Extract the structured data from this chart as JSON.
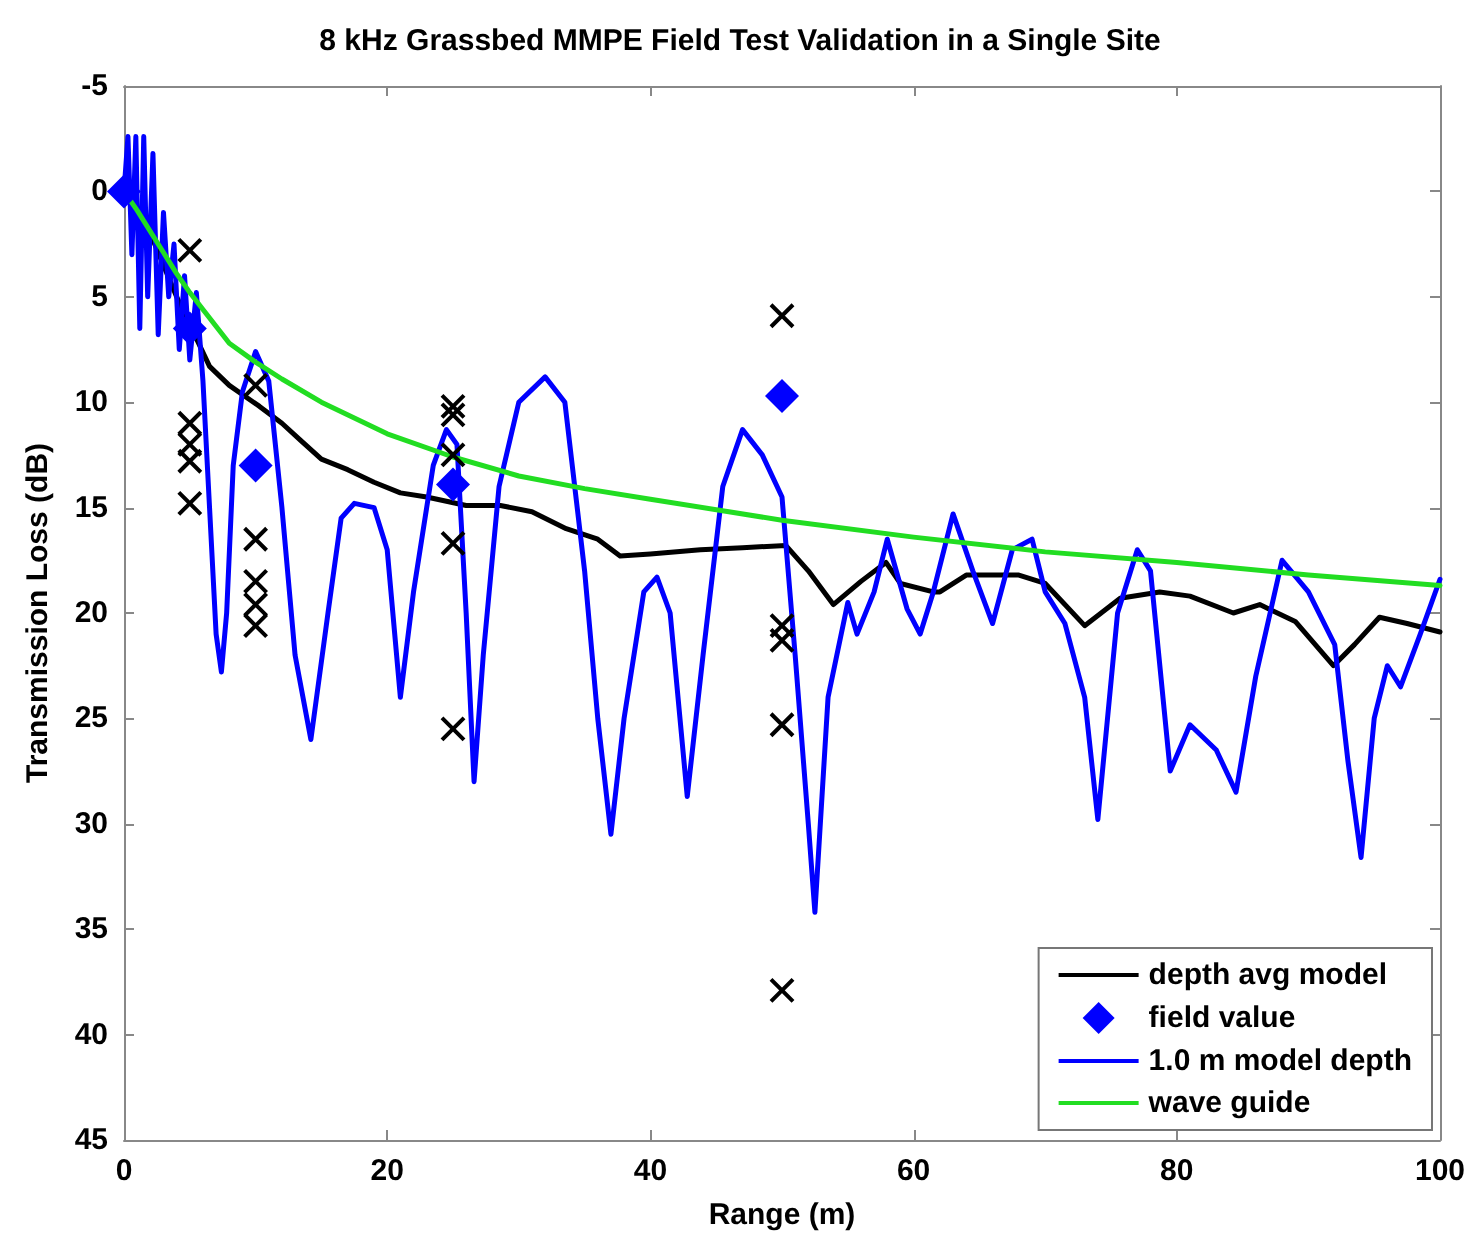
{
  "chart_data": {
    "type": "line",
    "title": "8 kHz Grassbed MMPE Field Test Validation in a Single Site",
    "xlabel": "Range (m)",
    "ylabel": "Transmission Loss (dB)",
    "xlim": [
      0,
      100
    ],
    "xticks": [
      0,
      20,
      40,
      60,
      80,
      100
    ],
    "ylim": [
      45,
      -5
    ],
    "yticks": [
      -5,
      0,
      5,
      10,
      15,
      20,
      25,
      30,
      35,
      40,
      45
    ],
    "grid": false,
    "legend": "bottom right",
    "series": [
      {
        "name": "depth avg model",
        "color": "#000000",
        "marker": "none",
        "x": [
          0,
          2,
          3,
          4,
          6.5,
          8,
          10.3,
          12,
          13.4,
          15,
          17,
          19,
          21,
          23,
          26,
          28.6,
          31,
          33.6,
          36,
          37.7,
          40,
          43.8,
          47,
          50.3,
          52,
          53.9,
          56,
          57.9,
          59,
          61.5,
          62,
          64,
          66.6,
          68,
          70,
          73,
          75.7,
          78.7,
          81,
          84.3,
          86.3,
          89,
          91.9,
          93.5,
          95.4,
          97.5,
          100
        ],
        "values": [
          0,
          2,
          3.5,
          5,
          8.3,
          9.2,
          10.2,
          11,
          11.8,
          12.7,
          13.2,
          13.8,
          14.3,
          14.5,
          14.9,
          14.9,
          15.2,
          16,
          16.5,
          17.3,
          17.2,
          17,
          16.9,
          16.8,
          18,
          19.6,
          18.5,
          17.6,
          18.6,
          19,
          19,
          18.2,
          18.2,
          18.2,
          18.6,
          20.6,
          19.3,
          19,
          19.2,
          20,
          19.6,
          20.4,
          22.5,
          21.5,
          20.2,
          20.5,
          20.9
        ]
      },
      {
        "name": "field value",
        "type": "scatter",
        "color": "#0000ff",
        "marker": "diamond",
        "x": [
          0,
          5,
          10,
          25,
          50
        ],
        "values": [
          0,
          6.5,
          13,
          13.9,
          9.7
        ]
      },
      {
        "name": "1.0 m model depth",
        "color": "#0000ff",
        "marker": "none",
        "x": [
          0,
          0.3,
          0.6,
          0.9,
          1.2,
          1.5,
          1.8,
          2.2,
          2.6,
          3.0,
          3.4,
          3.8,
          4.2,
          4.6,
          5.0,
          5.5,
          6,
          6.5,
          7,
          7.4,
          7.8,
          8.3,
          9,
          10,
          11,
          12,
          13,
          14.2,
          15.5,
          16.5,
          17.5,
          19,
          20,
          21,
          22,
          23.5,
          24.5,
          25.3,
          26,
          26.6,
          27.3,
          28.5,
          30,
          32,
          33.5,
          35,
          36,
          37,
          38,
          39.5,
          40.5,
          41.5,
          42.8,
          44,
          45.5,
          47,
          48.5,
          50,
          51,
          52,
          52.5,
          53.5,
          55,
          55.7,
          57,
          58,
          59.5,
          60.5,
          61.5,
          63,
          64.5,
          66,
          67.5,
          69,
          70,
          71.5,
          73,
          74,
          75.5,
          77,
          78,
          79.5,
          81,
          83,
          84.5,
          86,
          88,
          90,
          92,
          93,
          94,
          95,
          96,
          97,
          98.5,
          100
        ],
        "values": [
          0,
          -2.6,
          3,
          -2.6,
          6.5,
          -2.6,
          5,
          -1.8,
          6.8,
          1,
          5,
          2.5,
          7.5,
          4,
          8,
          4.8,
          9,
          15,
          21,
          22.8,
          20,
          13,
          9.5,
          7.6,
          9,
          15,
          22,
          26,
          20,
          15.5,
          14.8,
          15,
          17,
          24,
          19,
          13,
          11.3,
          12,
          20,
          28,
          22,
          14,
          10,
          8.8,
          10,
          18,
          25,
          30.5,
          25,
          19,
          18.3,
          20,
          28.7,
          22,
          14,
          11.3,
          12.5,
          14.5,
          22,
          30,
          34.2,
          24,
          19.5,
          21,
          19,
          16.5,
          19.8,
          21,
          19,
          15.3,
          18,
          20.5,
          17,
          16.5,
          19,
          20.5,
          24,
          29.8,
          20,
          17,
          18,
          27.5,
          25.3,
          26.5,
          28.5,
          23,
          17.5,
          19,
          21.5,
          27,
          31.6,
          25,
          22.5,
          23.5,
          21,
          18.4
        ]
      },
      {
        "name": "wave guide",
        "color": "#22dd22",
        "marker": "none",
        "x": [
          0,
          1,
          2,
          3,
          4,
          5,
          6,
          8,
          10,
          12,
          15,
          20,
          25,
          30,
          35,
          40,
          50,
          60,
          70,
          80,
          90,
          100
        ],
        "values": [
          0,
          0.9,
          1.9,
          2.9,
          3.9,
          4.8,
          5.6,
          7.2,
          8.1,
          8.9,
          10,
          11.5,
          12.6,
          13.5,
          14.1,
          14.6,
          15.6,
          16.4,
          17.1,
          17.6,
          18.2,
          18.7
        ]
      },
      {
        "type": "scatter",
        "color": "#000000",
        "marker": "cross",
        "x": [
          5,
          5,
          5,
          5,
          5,
          10,
          10,
          10,
          10,
          10,
          25,
          25,
          25,
          25,
          25,
          50,
          50,
          50,
          50,
          50
        ],
        "values": [
          2.8,
          11,
          12,
          12.8,
          14.8,
          9.2,
          16.5,
          18.5,
          19.6,
          20.6,
          10.2,
          10.6,
          12.5,
          16.7,
          25.5,
          5.9,
          20.6,
          21.3,
          25.3,
          37.9
        ]
      }
    ]
  }
}
